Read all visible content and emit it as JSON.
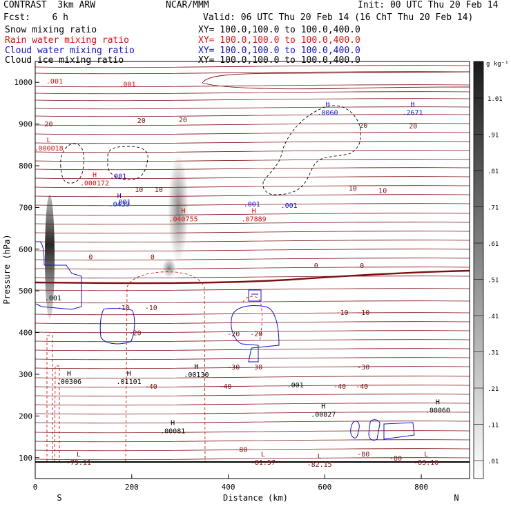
{
  "header": {
    "title": "CONTRAST  3km ARW",
    "center": "NCAR/MMM",
    "init": "Init: 00 UTC Thu 20 Feb 14",
    "fcst": "Fcst:    6 h",
    "valid": "Valid: 06 UTC Thu 20 Feb 14 (16 ChT Thu 20 Feb 14)"
  },
  "fields": [
    {
      "name": "Snow mixing ratio",
      "xy": "XY= 100.0,100.0 to 100.0,400.0",
      "color": "#000000"
    },
    {
      "name": "Rain water mixing ratio",
      "xy": "XY= 100.0,100.0 to 100.0,400.0",
      "color": "#e01010"
    },
    {
      "name": "Cloud water mixing ratio",
      "xy": "XY= 100.0,100.0 to 100.0,400.0",
      "color": "#1010d0"
    },
    {
      "name": "Cloud ice mixing ratio",
      "xy": "XY= 100.0,100.0 to 100.0,400.0",
      "color": "#000000"
    }
  ],
  "colors": {
    "temperature": "#7a1010",
    "rain": "#e01010",
    "cloud": "#1010d0",
    "ice": "#000000"
  },
  "chart_data": {
    "type": "cross-section",
    "xlabel": "Distance (km)",
    "ylabel": "Pressure (hPa)",
    "xlim": [
      0,
      900
    ],
    "ylim": [
      1050,
      50
    ],
    "xticks": [
      "0",
      "200",
      "400",
      "600",
      "800"
    ],
    "yticks": [
      "100",
      "200",
      "300",
      "400",
      "500",
      "600",
      "700",
      "800",
      "900",
      "1000"
    ],
    "x_ends": {
      "left": "S",
      "right": "N"
    },
    "colorbar": {
      "unit": "g kg⁻¹",
      "labels": [
        "1.01",
        ".91",
        ".81",
        ".71",
        ".61",
        ".51",
        ".41",
        ".31",
        ".21",
        ".11",
        ".01"
      ]
    },
    "isotherm_labels": [
      {
        "text": "-80",
        "x": 427,
        "p": 120
      },
      {
        "text": "-80",
        "x": 680,
        "p": 110
      },
      {
        "text": "-80",
        "x": 747,
        "p": 100
      },
      {
        "text": "-40",
        "x": 240,
        "p": 272
      },
      {
        "text": "-40",
        "x": 394,
        "p": 272
      },
      {
        "text": "-40",
        "x": 631,
        "p": 272
      },
      {
        "text": "-40",
        "x": 677,
        "p": 272
      },
      {
        "text": "-30",
        "x": 411,
        "p": 318
      },
      {
        "text": "-30",
        "x": 458,
        "p": 318
      },
      {
        "text": "-30",
        "x": 680,
        "p": 318
      },
      {
        "text": "-20",
        "x": 207,
        "p": 400
      },
      {
        "text": "-20",
        "x": 411,
        "p": 398
      },
      {
        "text": "-20",
        "x": 458,
        "p": 398
      },
      {
        "text": "-10",
        "x": 183,
        "p": 461
      },
      {
        "text": "-10",
        "x": 240,
        "p": 461
      },
      {
        "text": "-10",
        "x": 636,
        "p": 449
      },
      {
        "text": "-10",
        "x": 680,
        "p": 449
      },
      {
        "text": "0",
        "x": 115,
        "p": 582
      },
      {
        "text": "0",
        "x": 243,
        "p": 582
      },
      {
        "text": "0",
        "x": 582,
        "p": 562
      },
      {
        "text": "0",
        "x": 677,
        "p": 562
      },
      {
        "text": "10",
        "x": 215,
        "p": 744
      },
      {
        "text": "10",
        "x": 256,
        "p": 744
      },
      {
        "text": "10",
        "x": 658,
        "p": 747
      },
      {
        "text": "10",
        "x": 720,
        "p": 741
      },
      {
        "text": "20",
        "x": 28,
        "p": 901
      },
      {
        "text": "20",
        "x": 220,
        "p": 909
      },
      {
        "text": "20",
        "x": 306,
        "p": 911
      },
      {
        "text": "20",
        "x": 680,
        "p": 898
      },
      {
        "text": "20",
        "x": 783,
        "p": 896
      }
    ],
    "extrema": [
      {
        "kind": "L",
        "value": "-79.11",
        "x": 90,
        "p": 100,
        "field": "temperature"
      },
      {
        "kind": "L",
        "value": "-81.57",
        "x": 472,
        "p": 100,
        "field": "temperature"
      },
      {
        "kind": "L",
        "value": "-82.15",
        "x": 589,
        "p": 95,
        "field": "temperature"
      },
      {
        "kind": "L",
        "value": "-83.16",
        "x": 810,
        "p": 100,
        "field": "temperature"
      },
      {
        "kind": "H",
        "value": ".00081",
        "x": 285,
        "p": 175,
        "field": "ice"
      },
      {
        "kind": "H",
        "value": ".00827",
        "x": 597,
        "p": 215,
        "field": "ice"
      },
      {
        "kind": "H",
        "value": ".00060",
        "x": 834,
        "p": 225,
        "field": "ice"
      },
      {
        "kind": "H",
        "value": ".00306",
        "x": 70,
        "p": 293,
        "field": "ice"
      },
      {
        "kind": "H",
        "value": ".01101",
        "x": 194,
        "p": 293,
        "field": "ice"
      },
      {
        "kind": "H",
        "value": ".00130",
        "x": 334,
        "p": 310,
        "field": "ice"
      },
      {
        "kind": "H",
        "value": ".040755",
        "x": 307,
        "p": 683,
        "field": "rain"
      },
      {
        "kind": "H",
        "value": ".07889",
        "x": 453,
        "p": 683,
        "field": "rain"
      },
      {
        "kind": "H",
        "value": ".000172",
        "x": 123,
        "p": 769,
        "field": "rain"
      },
      {
        "kind": "L",
        "value": ".000018",
        "x": 28,
        "p": 853,
        "field": "rain"
      },
      {
        "kind": "H",
        "value": ".0439",
        "x": 174,
        "p": 719,
        "field": "cloud"
      },
      {
        "kind": "H",
        "value": ".0060",
        "x": 606,
        "p": 938,
        "field": "cloud"
      },
      {
        "kind": "H",
        "value": ".2671",
        "x": 782,
        "p": 938,
        "field": "cloud"
      }
    ],
    "contour_value_labels": [
      {
        "text": ".001",
        "x": 539,
        "p": 275,
        "field": "ice"
      },
      {
        "text": ".001",
        "x": 37,
        "p": 484,
        "field": "snow"
      },
      {
        "text": ".001",
        "x": 181,
        "p": 714,
        "field": "cloud"
      },
      {
        "text": ".001",
        "x": 172,
        "p": 776,
        "field": "cloud"
      },
      {
        "text": ".001",
        "x": 449,
        "p": 709,
        "field": "cloud"
      },
      {
        "text": ".001",
        "x": 526,
        "p": 706,
        "field": "cloud"
      },
      {
        "text": ".001",
        "x": 40,
        "p": 1004,
        "field": "rain"
      },
      {
        "text": ".001",
        "x": 191,
        "p": 996,
        "field": "rain"
      }
    ]
  }
}
